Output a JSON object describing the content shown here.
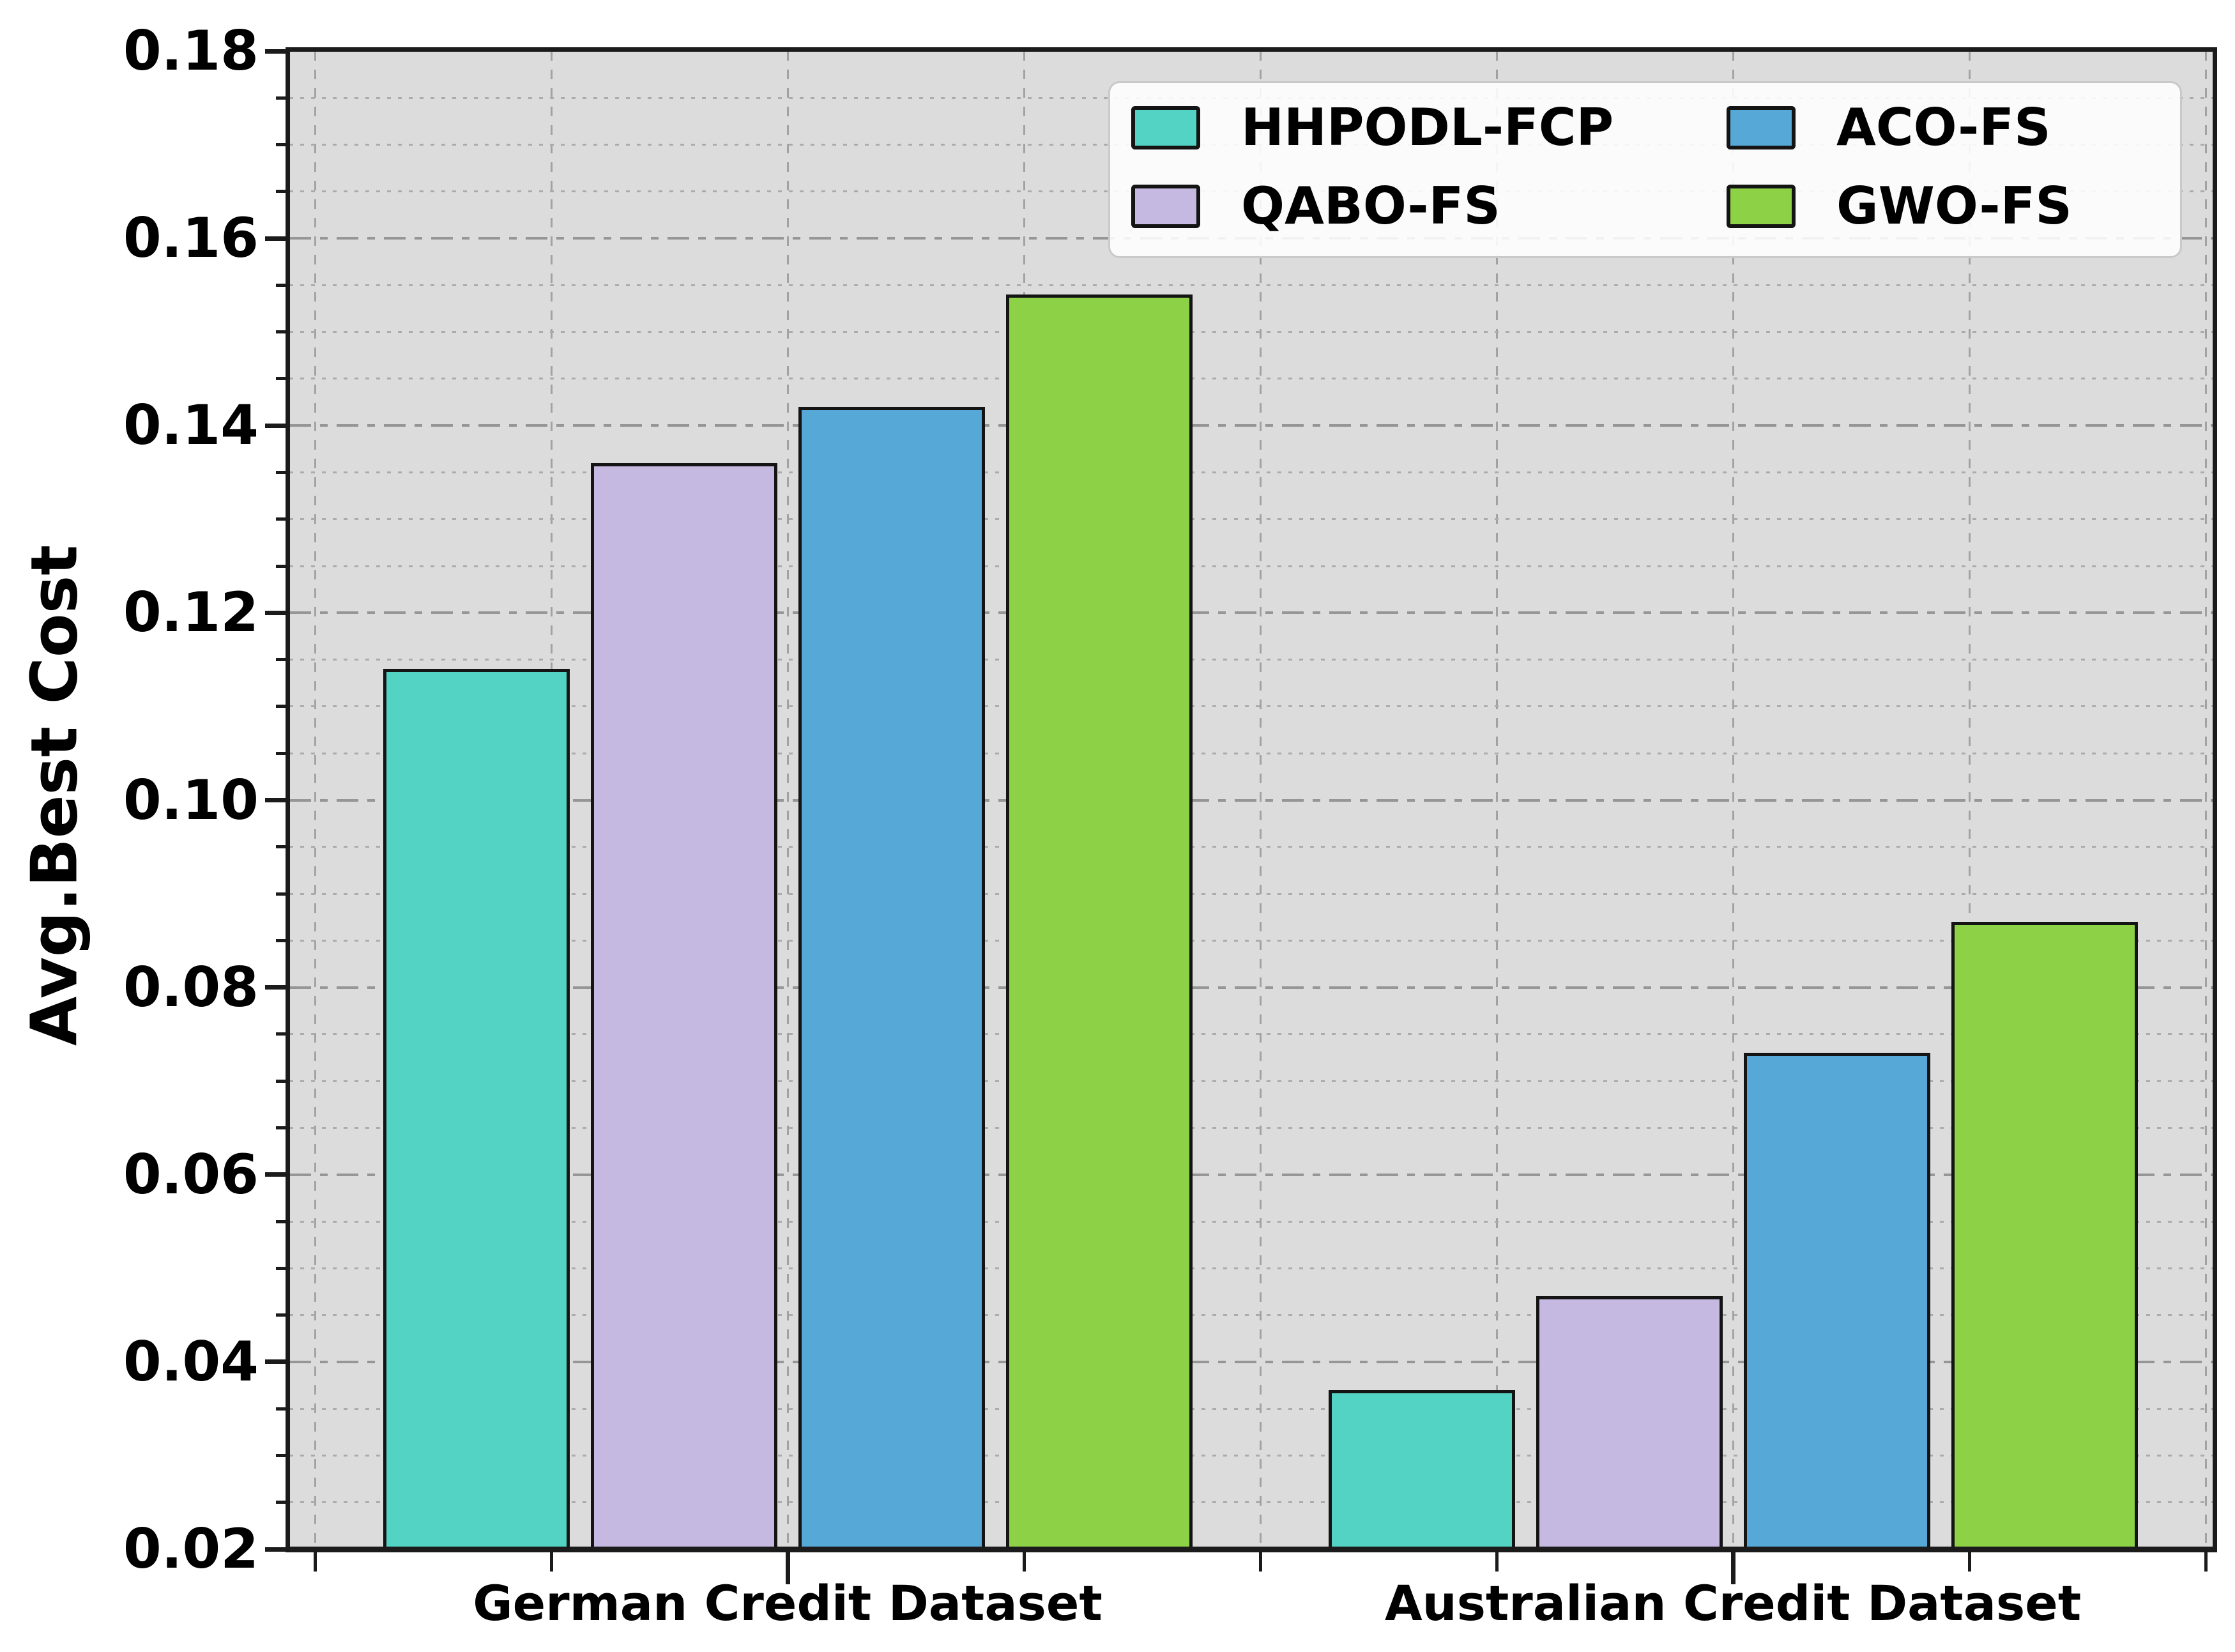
{
  "figure": {
    "background": "#ffffff",
    "plot_background": "#dcdcdc"
  },
  "chart_data": {
    "type": "bar",
    "title": "",
    "xlabel": "",
    "ylabel": "Avg.Best Cost",
    "categories": [
      "German Credit Dataset",
      "Australian Credit Dataset"
    ],
    "series": [
      {
        "name": "HHPODL-FCP",
        "color": "#52D3C3",
        "values": [
          0.114,
          0.037
        ]
      },
      {
        "name": "QABO-FS",
        "color": "#C6B9E1",
        "values": [
          0.136,
          0.047
        ]
      },
      {
        "name": "ACO-FS",
        "color": "#56A9D7",
        "values": [
          0.142,
          0.073
        ]
      },
      {
        "name": "GWO-FS",
        "color": "#8DD147",
        "values": [
          0.154,
          0.087
        ]
      }
    ],
    "ylim": [
      0.02,
      0.18
    ],
    "ytick_step": 0.02,
    "ytick_labels": [
      "0.18",
      "0.16",
      "0.14",
      "0.12",
      "0.10",
      "0.08",
      "0.06",
      "0.04",
      "0.02"
    ],
    "yminor_step": 0.005,
    "grid": {
      "major": "dashed",
      "minor": "dotted",
      "vertical": "dashed"
    },
    "legend": {
      "position": "upper right",
      "columns": 2,
      "entries": [
        "HHPODL-FCP",
        "QABO-FS",
        "ACO-FS",
        "GWO-FS"
      ]
    }
  },
  "colors": {
    "spine": "#1b1b1b",
    "grid_major": "#969696",
    "grid_minor": "#ababab",
    "text": "#000000",
    "legend_border": "#c9c9c9",
    "legend_background": "#ffffff"
  }
}
